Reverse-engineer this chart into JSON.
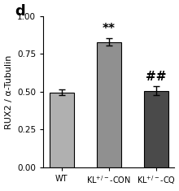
{
  "panel_label": "d",
  "categories": [
    "WT",
    "KL$^{+/-}$-CON",
    "KL$^{+/-}$-CQ"
  ],
  "values": [
    0.495,
    0.83,
    0.505
  ],
  "errors": [
    0.018,
    0.025,
    0.03
  ],
  "bar_colors": [
    "#b0b0b0",
    "#909090",
    "#4a4a4a"
  ],
  "ylabel": "RUX2 / α-Tubulin",
  "ylim": [
    0.0,
    1.0
  ],
  "yticks": [
    0.0,
    0.25,
    0.5,
    0.75,
    1.0
  ],
  "ytick_labels": [
    "0.00",
    "0.25",
    "0.50",
    "0.75",
    "1.00"
  ],
  "annotations": [
    {
      "bar_idx": 1,
      "text": "**",
      "fontsize": 11
    },
    {
      "bar_idx": 2,
      "text": "##",
      "fontsize": 11
    }
  ],
  "background_color": "#ffffff",
  "bar_width": 0.52,
  "figsize": [
    2.2,
    2.35
  ],
  "dpi": 100
}
